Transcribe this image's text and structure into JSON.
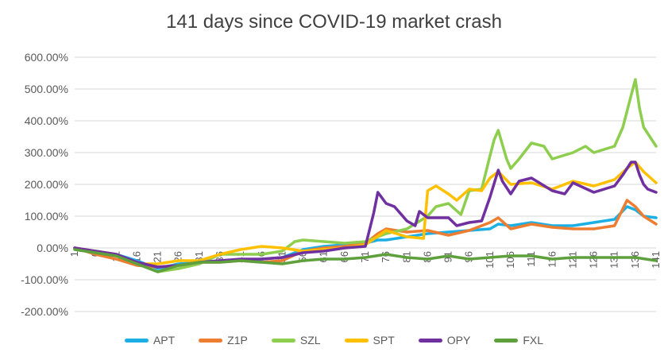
{
  "chart_data": {
    "type": "line",
    "title": "141 days since COVID-19 market crash",
    "xlabel": "",
    "ylabel": "",
    "ylim": [
      -200,
      600
    ],
    "ytick_labels": [
      "600.00%",
      "500.00%",
      "400.00%",
      "300.00%",
      "200.00%",
      "100.00%",
      "0.00%",
      "-100.00%",
      "-200.00%"
    ],
    "ytick_values": [
      600,
      500,
      400,
      300,
      200,
      100,
      0,
      -100,
      -200
    ],
    "xlim": [
      1,
      141
    ],
    "xtick_labels": [
      "1",
      "6",
      "11",
      "16",
      "21",
      "26",
      "31",
      "36",
      "41",
      "46",
      "51",
      "56",
      "61",
      "66",
      "71",
      "76",
      "81",
      "86",
      "91",
      "96",
      "101",
      "106",
      "111",
      "116",
      "121",
      "126",
      "131",
      "136",
      "141"
    ],
    "xtick_values": [
      1,
      6,
      11,
      16,
      21,
      26,
      31,
      36,
      41,
      46,
      51,
      56,
      61,
      66,
      71,
      76,
      81,
      86,
      91,
      96,
      101,
      106,
      111,
      116,
      121,
      126,
      131,
      136,
      141
    ],
    "grid": "horizontal",
    "legend_position": "bottom",
    "series": [
      {
        "name": "APT",
        "color": "#1CAFE6",
        "x": [
          1,
          6,
          11,
          16,
          21,
          26,
          31,
          36,
          41,
          46,
          51,
          56,
          61,
          66,
          71,
          74,
          76,
          81,
          86,
          91,
          96,
          101,
          103,
          106,
          111,
          116,
          121,
          126,
          131,
          134,
          136,
          138,
          141
        ],
        "values": [
          0,
          -10,
          -20,
          -40,
          -65,
          -50,
          -45,
          -40,
          -40,
          -35,
          -30,
          -5,
          5,
          10,
          15,
          25,
          25,
          35,
          45,
          50,
          55,
          60,
          75,
          70,
          80,
          70,
          70,
          80,
          90,
          130,
          120,
          100,
          95
        ]
      },
      {
        "name": "Z1P",
        "color": "#ED7D31",
        "x": [
          1,
          6,
          11,
          16,
          21,
          26,
          31,
          36,
          41,
          46,
          51,
          56,
          61,
          66,
          71,
          74,
          76,
          81,
          86,
          91,
          96,
          101,
          103,
          106,
          111,
          116,
          121,
          126,
          131,
          134,
          136,
          138,
          141
        ],
        "values": [
          0,
          -20,
          -35,
          -55,
          -60,
          -55,
          -45,
          -45,
          -40,
          -45,
          -40,
          -10,
          0,
          5,
          15,
          45,
          60,
          50,
          55,
          40,
          55,
          80,
          95,
          60,
          75,
          65,
          60,
          60,
          70,
          150,
          130,
          100,
          75
        ]
      },
      {
        "name": "SZL",
        "color": "#8DCE4E",
        "x": [
          1,
          6,
          11,
          16,
          21,
          26,
          31,
          36,
          41,
          46,
          51,
          54,
          56,
          61,
          66,
          71,
          76,
          81,
          86,
          88,
          91,
          94,
          96,
          99,
          101,
          102,
          103,
          105,
          106,
          108,
          111,
          114,
          116,
          121,
          124,
          126,
          131,
          133,
          135,
          136,
          137,
          138,
          141
        ],
        "values": [
          0,
          -15,
          -20,
          -50,
          -75,
          -65,
          -50,
          -20,
          -20,
          -20,
          -10,
          20,
          25,
          20,
          15,
          20,
          45,
          60,
          100,
          130,
          140,
          105,
          180,
          185,
          290,
          340,
          370,
          280,
          250,
          280,
          330,
          320,
          280,
          300,
          320,
          300,
          320,
          380,
          480,
          530,
          440,
          380,
          320
        ]
      },
      {
        "name": "SPT",
        "color": "#FFC000",
        "x": [
          1,
          6,
          11,
          16,
          21,
          26,
          31,
          36,
          41,
          46,
          51,
          56,
          61,
          66,
          71,
          76,
          81,
          85,
          86,
          88,
          91,
          93,
          96,
          99,
          101,
          103,
          106,
          111,
          116,
          121,
          126,
          131,
          134,
          136,
          138,
          141
        ],
        "values": [
          0,
          -10,
          -20,
          -50,
          -50,
          -40,
          -40,
          -20,
          -5,
          5,
          0,
          -10,
          -5,
          0,
          10,
          55,
          35,
          30,
          180,
          195,
          170,
          150,
          185,
          180,
          220,
          240,
          200,
          205,
          185,
          210,
          195,
          215,
          250,
          270,
          240,
          205
        ]
      },
      {
        "name": "OPY",
        "color": "#7030A0",
        "x": [
          1,
          6,
          11,
          16,
          21,
          26,
          31,
          36,
          41,
          46,
          51,
          56,
          61,
          66,
          71,
          73,
          74,
          76,
          78,
          81,
          83,
          84,
          86,
          91,
          93,
          96,
          99,
          101,
          103,
          104,
          106,
          108,
          111,
          116,
          119,
          121,
          126,
          131,
          133,
          135,
          136,
          137,
          138,
          139,
          141
        ],
        "values": [
          0,
          -10,
          -20,
          -45,
          -60,
          -55,
          -45,
          -40,
          -35,
          -35,
          -30,
          -15,
          -10,
          0,
          5,
          110,
          175,
          140,
          130,
          85,
          70,
          115,
          95,
          95,
          70,
          80,
          85,
          160,
          245,
          210,
          170,
          210,
          220,
          180,
          170,
          205,
          175,
          195,
          230,
          270,
          270,
          230,
          200,
          185,
          175
        ]
      },
      {
        "name": "FXL",
        "color": "#5DA03C",
        "x": [
          1,
          6,
          11,
          16,
          21,
          26,
          31,
          36,
          41,
          46,
          51,
          56,
          61,
          66,
          71,
          76,
          81,
          86,
          91,
          96,
          101,
          106,
          111,
          116,
          121,
          126,
          131,
          136,
          141
        ],
        "values": [
          -5,
          -15,
          -25,
          -50,
          -75,
          -55,
          -45,
          -45,
          -40,
          -45,
          -50,
          -40,
          -35,
          -35,
          -30,
          -20,
          -30,
          -35,
          -25,
          -35,
          -30,
          -25,
          -25,
          -35,
          -30,
          -30,
          -30,
          -30,
          -40
        ]
      }
    ]
  }
}
